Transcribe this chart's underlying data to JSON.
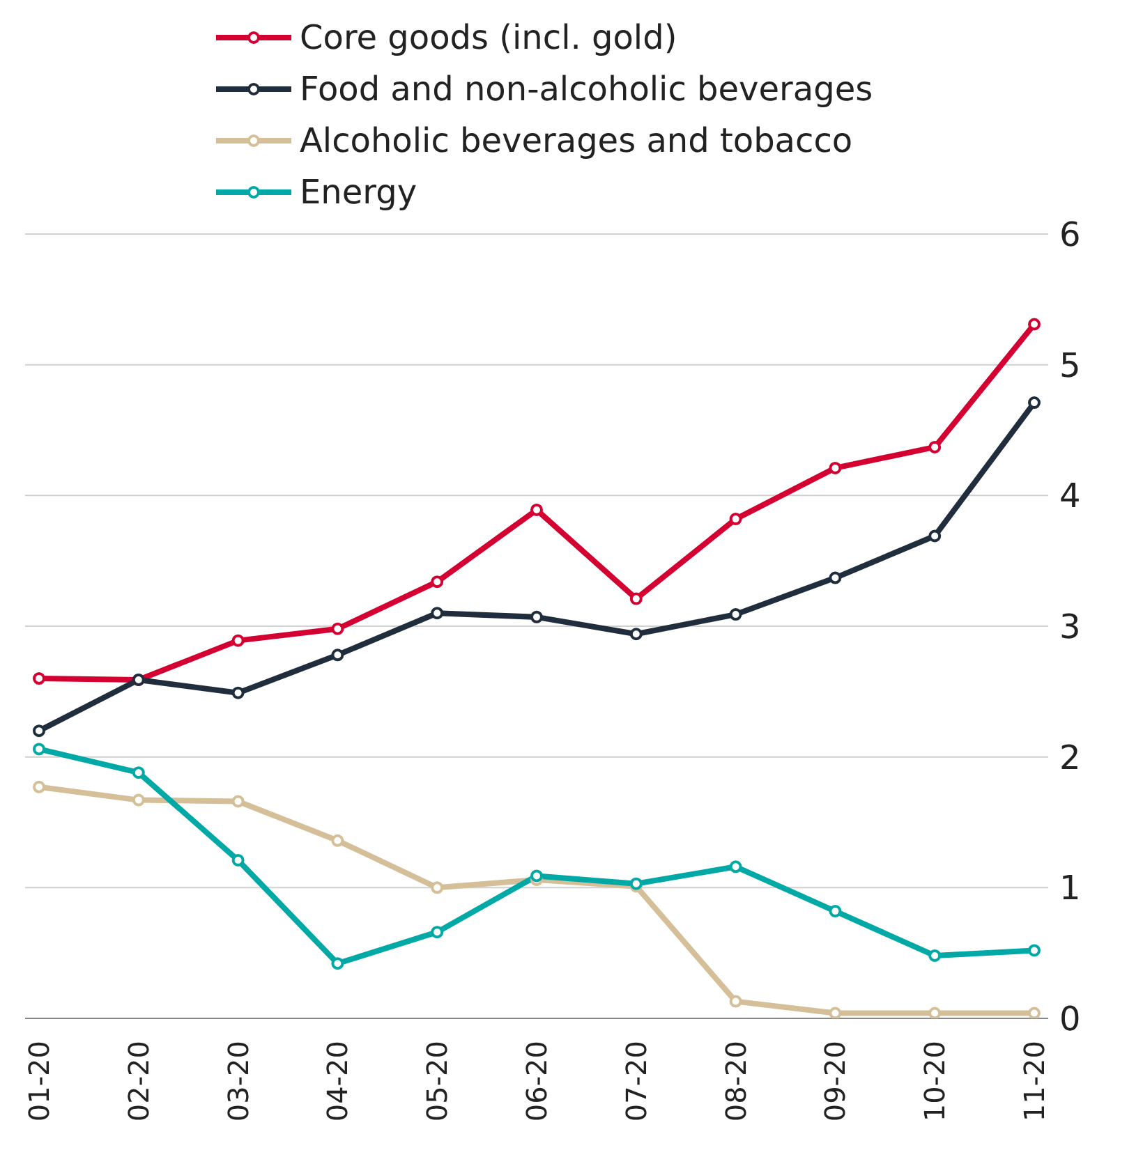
{
  "chart_data": {
    "type": "line",
    "categories": [
      "01-20",
      "02-20",
      "03-20",
      "04-20",
      "05-20",
      "06-20",
      "07-20",
      "08-20",
      "09-20",
      "10-20",
      "11-20"
    ],
    "series": [
      {
        "name": "Core goods (incl. gold)",
        "color": "#d50032",
        "values": [
          2.6,
          2.59,
          2.89,
          2.98,
          3.34,
          3.89,
          3.21,
          3.82,
          4.21,
          4.37,
          5.31
        ]
      },
      {
        "name": "Food and non-alcoholic beverages",
        "color": "#1f2d3d",
        "values": [
          2.2,
          2.59,
          2.49,
          2.78,
          3.1,
          3.07,
          2.94,
          3.09,
          3.37,
          3.69,
          4.71
        ]
      },
      {
        "name": "Alcoholic beverages and tobacco",
        "color": "#d4bf98",
        "values": [
          1.77,
          1.67,
          1.66,
          1.36,
          1.0,
          1.06,
          1.01,
          0.13,
          0.04,
          0.04,
          0.04
        ]
      },
      {
        "name": "Energy",
        "color": "#00a9a5",
        "values": [
          2.06,
          1.88,
          1.21,
          0.42,
          0.66,
          1.09,
          1.03,
          1.16,
          0.82,
          0.48,
          0.52
        ]
      }
    ],
    "ylim": [
      0,
      6
    ],
    "yticks": [
      0,
      1,
      2,
      3,
      4,
      5,
      6
    ],
    "grid": "y",
    "legend": "top",
    "marker": "circle",
    "line_style": "solid"
  }
}
